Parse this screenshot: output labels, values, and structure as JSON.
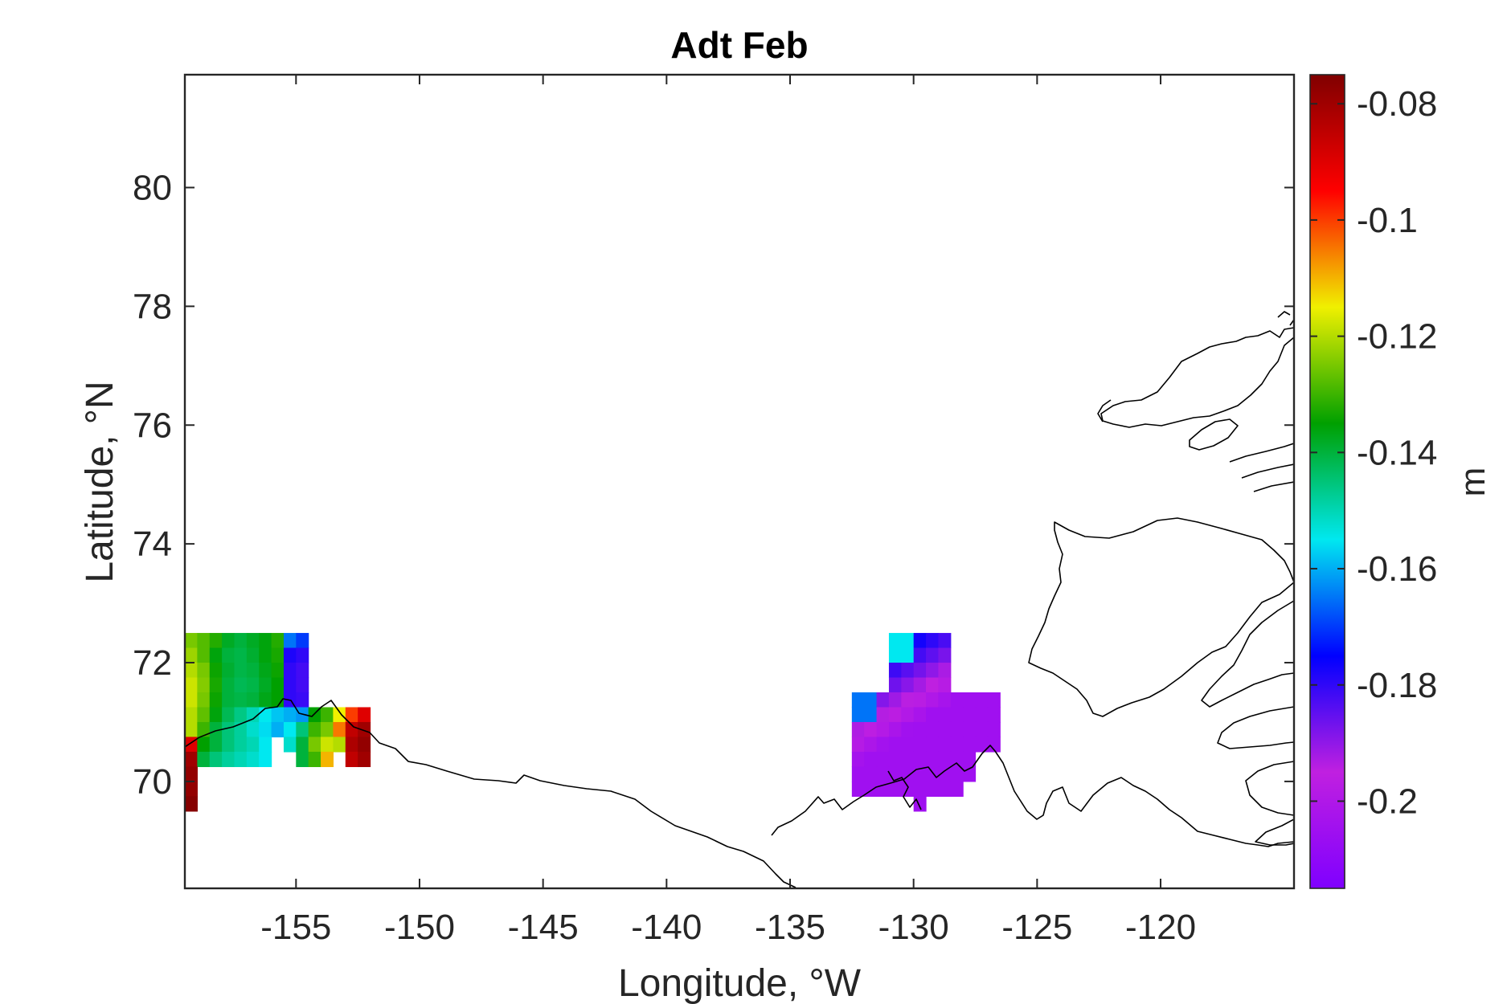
{
  "chart_data": {
    "type": "heatmap",
    "title": "Adt Feb",
    "xlabel": "Longitude, °W",
    "ylabel": "Latitude, °N",
    "xlim": [
      -159.5,
      -114.6
    ],
    "ylim": [
      68.2,
      81.9
    ],
    "x_ticks": [
      {
        "value": -155,
        "label": "-155"
      },
      {
        "value": -150,
        "label": "-150"
      },
      {
        "value": -145,
        "label": "-145"
      },
      {
        "value": -140,
        "label": "-140"
      },
      {
        "value": -135,
        "label": "-135"
      },
      {
        "value": -130,
        "label": "-130"
      },
      {
        "value": -125,
        "label": "-125"
      },
      {
        "value": -120,
        "label": "-120"
      }
    ],
    "y_ticks": [
      {
        "value": 70,
        "label": "70"
      },
      {
        "value": 72,
        "label": "72"
      },
      {
        "value": 74,
        "label": "74"
      },
      {
        "value": 76,
        "label": "76"
      },
      {
        "value": 78,
        "label": "78"
      },
      {
        "value": 80,
        "label": "80"
      }
    ],
    "grid": false,
    "colorbar": {
      "label": "m",
      "range": [
        -0.215,
        -0.075
      ],
      "ticks": [
        {
          "value": -0.08,
          "label": "-0.08"
        },
        {
          "value": -0.1,
          "label": "-0.1"
        },
        {
          "value": -0.12,
          "label": "-0.12"
        },
        {
          "value": -0.14,
          "label": "-0.14"
        },
        {
          "value": -0.16,
          "label": "-0.16"
        },
        {
          "value": -0.18,
          "label": "-0.18"
        },
        {
          "value": -0.2,
          "label": "-0.2"
        }
      ],
      "colormap": [
        "#7f00ff",
        "#c020e0",
        "#0000ff",
        "#00e8f0",
        "#00a000",
        "#f0f000",
        "#ff0000",
        "#800000"
      ]
    },
    "cell_size": {
      "lon": 0.5,
      "lat": 0.25
    },
    "regions": [
      {
        "name": "",
        "lon_start": -159.5,
        "lat_top": 72.5,
        "rows": [
          [
            -0.125,
            -0.128,
            -0.132,
            -0.138,
            -0.14,
            -0.138,
            -0.136,
            -0.132,
            -0.165,
            -0.17
          ],
          [
            -0.122,
            -0.128,
            -0.136,
            -0.14,
            -0.141,
            -0.139,
            -0.136,
            -0.133,
            -0.178,
            -0.18
          ],
          [
            -0.12,
            -0.125,
            -0.134,
            -0.139,
            -0.141,
            -0.14,
            -0.137,
            -0.134,
            -0.18,
            -0.182
          ],
          [
            -0.118,
            -0.124,
            -0.133,
            -0.14,
            -0.142,
            -0.141,
            -0.138,
            -0.135,
            -0.18,
            -0.182
          ],
          [
            -0.118,
            -0.125,
            -0.134,
            -0.14,
            -0.141,
            -0.14,
            -0.137,
            -0.135,
            -0.18,
            -0.181
          ],
          [
            -0.12,
            -0.127,
            -0.136,
            -0.142,
            -0.146,
            -0.15,
            -0.155,
            -0.158,
            -0.16,
            -0.162,
            -0.135,
            -0.13,
            -0.115,
            -0.1,
            -0.09
          ],
          [
            -0.12,
            -0.13,
            -0.14,
            -0.145,
            -0.148,
            -0.152,
            -0.156,
            -0.16,
            -0.155,
            -0.145,
            -0.13,
            -0.125,
            -0.105,
            -0.085,
            -0.08
          ],
          [
            -0.09,
            -0.135,
            -0.14,
            -0.145,
            -0.148,
            -0.15,
            -0.155,
            null,
            -0.152,
            -0.14,
            -0.125,
            -0.118,
            -0.12,
            -0.082,
            -0.078
          ],
          [
            -0.08,
            -0.14,
            -0.145,
            -0.148,
            -0.15,
            -0.152,
            -0.155,
            null,
            null,
            -0.14,
            -0.13,
            -0.11,
            null,
            -0.085,
            -0.08
          ],
          [
            -0.078,
            null,
            null,
            null,
            null,
            null,
            null,
            null,
            null,
            null,
            null,
            null,
            null,
            null,
            null
          ],
          [
            -0.078,
            null,
            null,
            null,
            null,
            null,
            null,
            null,
            null,
            null,
            null,
            null,
            null,
            null,
            null
          ],
          [
            -0.076,
            null,
            null,
            null,
            null,
            null,
            null,
            null,
            null,
            null,
            null,
            null,
            null,
            null,
            null
          ]
        ]
      },
      {
        "name": "",
        "lon_start": -132.5,
        "lat_top": 72.5,
        "rows": [
          [
            null,
            null,
            null,
            null,
            null,
            null,
            null,
            null,
            null,
            null,
            null,
            null,
            null,
            null,
            null,
            null,
            null,
            null,
            null,
            null,
            null,
            null,
            null,
            null,
            null,
            null,
            null,
            null,
            null,
            null,
            null,
            null
          ],
          [
            null,
            null,
            null,
            null,
            null,
            null,
            null,
            null,
            null,
            null,
            null,
            null,
            null,
            null,
            null,
            null,
            null,
            null,
            null,
            null,
            null,
            null,
            null,
            null,
            null,
            null,
            null,
            null,
            null,
            null,
            null,
            null
          ]
        ]
      }
    ],
    "coastline": "continuous black outline of the Arctic coast of Alaska and the Canadian Arctic Archipelago"
  }
}
